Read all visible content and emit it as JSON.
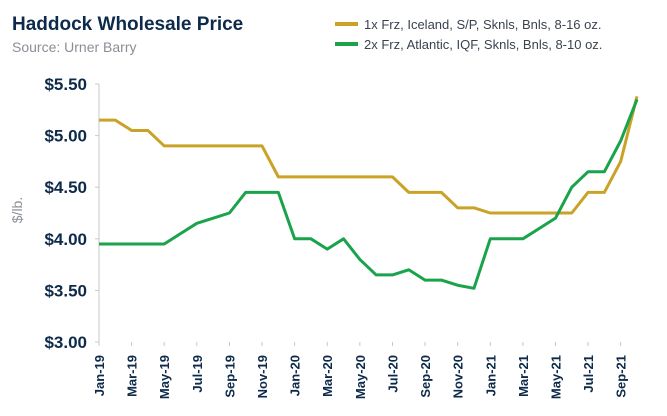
{
  "chart_data": {
    "type": "line",
    "title": "Haddock Wholesale Price",
    "subtitle": "Source: Urner Barry",
    "y_label": "$/lb.",
    "categories": [
      "Jan-19",
      null,
      "Mar-19",
      null,
      "May-19",
      null,
      "Jul-19",
      null,
      "Sep-19",
      null,
      "Nov-19",
      null,
      "Jan-20",
      null,
      "Mar-20",
      null,
      "May-20",
      null,
      "Jul-20",
      null,
      "Sep-20",
      null,
      "Nov-20",
      null,
      "Jan-21",
      null,
      "Mar-21",
      null,
      "May-21",
      null,
      "Jul-21",
      null,
      "Sep-21",
      null
    ],
    "series": [
      {
        "name": "1x Frz, Iceland, S/P, Sknls, Bnls, 8-16 oz.",
        "color": "#c9a227",
        "values": [
          5.15,
          5.15,
          5.05,
          5.05,
          4.9,
          4.9,
          4.9,
          4.9,
          4.9,
          4.9,
          4.9,
          4.6,
          4.6,
          4.6,
          4.6,
          4.6,
          4.6,
          4.6,
          4.6,
          4.45,
          4.45,
          4.45,
          4.3,
          4.3,
          4.25,
          4.25,
          4.25,
          4.25,
          4.25,
          4.25,
          4.45,
          4.45,
          4.75,
          5.38
        ]
      },
      {
        "name": "2x Frz, Atlantic, IQF, Sknls, Bnls, 8-10 oz.",
        "color": "#1aa34a",
        "values": [
          3.95,
          3.95,
          3.95,
          3.95,
          3.95,
          4.05,
          4.15,
          4.2,
          4.25,
          4.45,
          4.45,
          4.45,
          4.0,
          4.0,
          3.9,
          4.0,
          3.8,
          3.65,
          3.65,
          3.7,
          3.6,
          3.6,
          3.55,
          3.52,
          4.0,
          4.0,
          4.0,
          4.1,
          4.2,
          4.5,
          4.65,
          4.65,
          4.95,
          5.35
        ]
      }
    ],
    "ylim": [
      3,
      5.5
    ],
    "yticks": [
      {
        "value": 3,
        "label": "$3.00"
      },
      {
        "value": 3.5,
        "label": "$3.50"
      },
      {
        "value": 4,
        "label": "$4.00"
      },
      {
        "value": 4.5,
        "label": "$4.50"
      },
      {
        "value": 5,
        "label": "$5.00"
      },
      {
        "value": 5.5,
        "label": "$5.50"
      }
    ]
  }
}
